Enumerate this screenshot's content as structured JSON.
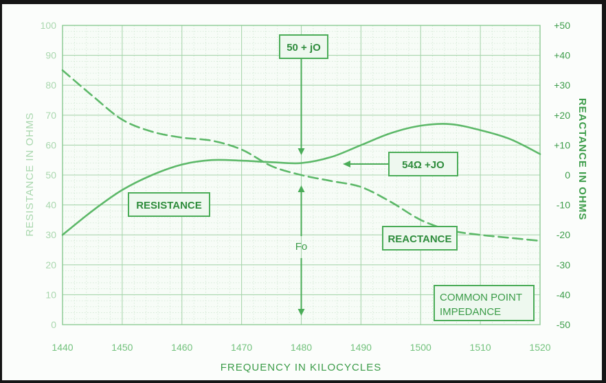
{
  "chart_data": {
    "type": "line",
    "title": "",
    "xlabel": "FREQUENCY IN KILOCYCLES",
    "ylabel_left": "RESISTANCE IN OHMS",
    "ylabel_right": "REACTANCE IN OHMS",
    "xlim": [
      1440,
      1520
    ],
    "ylim_left": [
      0,
      100
    ],
    "ylim_right": [
      -50,
      50
    ],
    "x_ticks": [
      "1440",
      "1450",
      "1460",
      "1470",
      "1480",
      "1490",
      "1500",
      "1510",
      "1520"
    ],
    "y_left_ticks": [
      "0",
      "10",
      "20",
      "30",
      "40",
      "50",
      "60",
      "70",
      "80",
      "90",
      "100"
    ],
    "y_right_ticks": [
      "-50",
      "-40",
      "-30",
      "-20",
      "-10",
      "0",
      "+10",
      "+20",
      "+30",
      "+40",
      "+50"
    ],
    "grid": true,
    "series": [
      {
        "name": "RESISTANCE",
        "axis": "left",
        "style": "solid",
        "color": "#5cb868",
        "x": [
          1440,
          1445,
          1450,
          1455,
          1460,
          1465,
          1470,
          1475,
          1480,
          1485,
          1490,
          1495,
          1500,
          1505,
          1510,
          1515,
          1520
        ],
        "y": [
          30,
          38,
          45,
          50,
          53.5,
          55,
          54.8,
          54.3,
          54,
          56,
          60,
          64,
          66.5,
          67,
          65,
          62,
          57
        ]
      },
      {
        "name": "REACTANCE",
        "axis": "right",
        "style": "dashed",
        "color": "#5cb868",
        "x": [
          1440,
          1445,
          1450,
          1455,
          1460,
          1465,
          1470,
          1475,
          1480,
          1485,
          1490,
          1495,
          1500,
          1505,
          1510,
          1515,
          1520
        ],
        "y": [
          35,
          26.5,
          18.5,
          14.5,
          12.5,
          11.5,
          8.5,
          3,
          0,
          -2,
          -4,
          -9,
          -15,
          -18.5,
          -20,
          -21,
          -22
        ]
      }
    ],
    "annotations": [
      {
        "id": "resistance",
        "text": "RESISTANCE",
        "boxed": true
      },
      {
        "id": "reactance",
        "text": "REACTANCE",
        "boxed": true
      },
      {
        "id": "fifty",
        "text": "50 + jO",
        "boxed": true
      },
      {
        "id": "fiftyfour",
        "text": "54Ω +JO",
        "boxed": true
      },
      {
        "id": "fo",
        "text": "Fo",
        "boxed": false
      },
      {
        "id": "common_line1",
        "text": "COMMON POINT",
        "boxed": true
      },
      {
        "id": "common_line2",
        "text": "IMPEDANCE",
        "boxed": true
      }
    ]
  }
}
